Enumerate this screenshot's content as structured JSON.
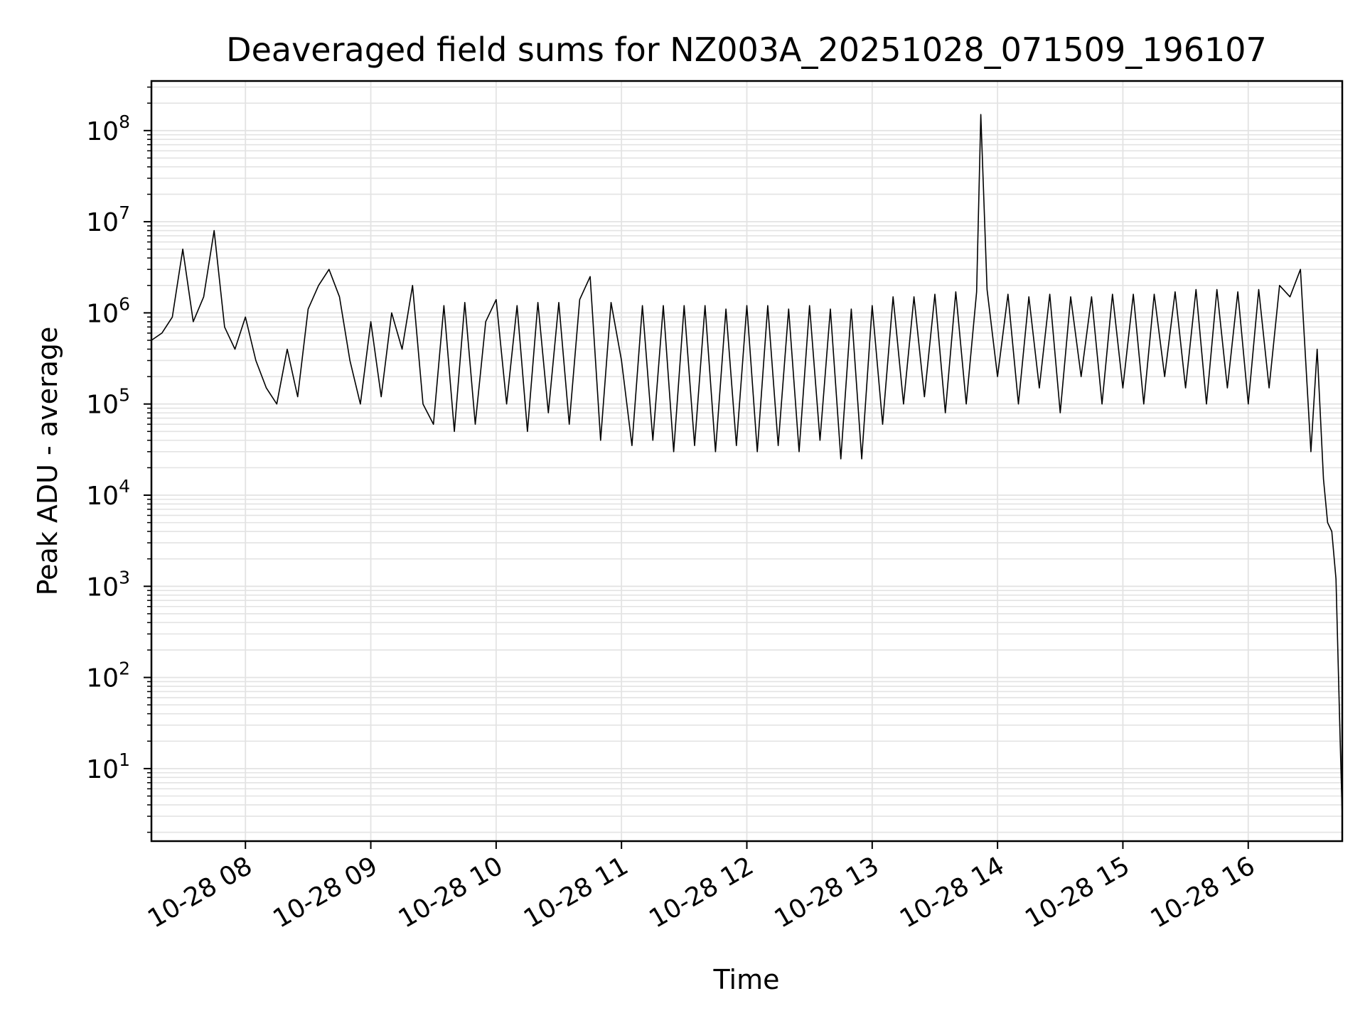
{
  "chart_data": {
    "type": "line",
    "title": "Deaveraged field sums for NZ003A_20251028_071509_196107",
    "xlabel": "Time",
    "ylabel": "Peak ADU - average",
    "yscale": "log",
    "ylim": [
      1.6,
      350000000.0
    ],
    "xlim": [
      "2025-10-28 07:15",
      "2025-10-28 16:45"
    ],
    "grid": true,
    "grid_color": "#e3e3e3",
    "line_color": "#000000",
    "x_ticks": [
      "10-28 08",
      "10-28 09",
      "10-28 10",
      "10-28 11",
      "10-28 12",
      "10-28 13",
      "10-28 14",
      "10-28 15",
      "10-28 16"
    ],
    "x_tick_times": [
      "2025-10-28 08:00",
      "2025-10-28 09:00",
      "2025-10-28 10:00",
      "2025-10-28 11:00",
      "2025-10-28 12:00",
      "2025-10-28 13:00",
      "2025-10-28 14:00",
      "2025-10-28 15:00",
      "2025-10-28 16:00"
    ],
    "y_ticks": [
      {
        "value": 10,
        "base": "10",
        "exp": "1"
      },
      {
        "value": 100,
        "base": "10",
        "exp": "2"
      },
      {
        "value": 1000,
        "base": "10",
        "exp": "3"
      },
      {
        "value": 10000,
        "base": "10",
        "exp": "4"
      },
      {
        "value": 100000,
        "base": "10",
        "exp": "5"
      },
      {
        "value": 1000000,
        "base": "10",
        "exp": "6"
      },
      {
        "value": 10000000,
        "base": "10",
        "exp": "7"
      },
      {
        "value": 100000000,
        "base": "10",
        "exp": "8"
      }
    ],
    "x": [
      "2025-10-28 07:15",
      "2025-10-28 07:20",
      "2025-10-28 07:25",
      "2025-10-28 07:30",
      "2025-10-28 07:35",
      "2025-10-28 07:40",
      "2025-10-28 07:45",
      "2025-10-28 07:50",
      "2025-10-28 07:55",
      "2025-10-28 08:00",
      "2025-10-28 08:05",
      "2025-10-28 08:10",
      "2025-10-28 08:15",
      "2025-10-28 08:20",
      "2025-10-28 08:25",
      "2025-10-28 08:30",
      "2025-10-28 08:35",
      "2025-10-28 08:40",
      "2025-10-28 08:45",
      "2025-10-28 08:50",
      "2025-10-28 08:55",
      "2025-10-28 09:00",
      "2025-10-28 09:05",
      "2025-10-28 09:10",
      "2025-10-28 09:15",
      "2025-10-28 09:20",
      "2025-10-28 09:25",
      "2025-10-28 09:30",
      "2025-10-28 09:35",
      "2025-10-28 09:40",
      "2025-10-28 09:45",
      "2025-10-28 09:50",
      "2025-10-28 09:55",
      "2025-10-28 10:00",
      "2025-10-28 10:05",
      "2025-10-28 10:10",
      "2025-10-28 10:15",
      "2025-10-28 10:20",
      "2025-10-28 10:25",
      "2025-10-28 10:30",
      "2025-10-28 10:35",
      "2025-10-28 10:40",
      "2025-10-28 10:45",
      "2025-10-28 10:50",
      "2025-10-28 10:55",
      "2025-10-28 11:00",
      "2025-10-28 11:05",
      "2025-10-28 11:10",
      "2025-10-28 11:15",
      "2025-10-28 11:20",
      "2025-10-28 11:25",
      "2025-10-28 11:30",
      "2025-10-28 11:35",
      "2025-10-28 11:40",
      "2025-10-28 11:45",
      "2025-10-28 11:50",
      "2025-10-28 11:55",
      "2025-10-28 12:00",
      "2025-10-28 12:05",
      "2025-10-28 12:10",
      "2025-10-28 12:15",
      "2025-10-28 12:20",
      "2025-10-28 12:25",
      "2025-10-28 12:30",
      "2025-10-28 12:35",
      "2025-10-28 12:40",
      "2025-10-28 12:45",
      "2025-10-28 12:50",
      "2025-10-28 12:55",
      "2025-10-28 13:00",
      "2025-10-28 13:05",
      "2025-10-28 13:10",
      "2025-10-28 13:15",
      "2025-10-28 13:20",
      "2025-10-28 13:25",
      "2025-10-28 13:30",
      "2025-10-28 13:35",
      "2025-10-28 13:40",
      "2025-10-28 13:45",
      "2025-10-28 13:50",
      "2025-10-28 13:52",
      "2025-10-28 13:55",
      "2025-10-28 14:00",
      "2025-10-28 14:05",
      "2025-10-28 14:10",
      "2025-10-28 14:15",
      "2025-10-28 14:20",
      "2025-10-28 14:25",
      "2025-10-28 14:30",
      "2025-10-28 14:35",
      "2025-10-28 14:40",
      "2025-10-28 14:45",
      "2025-10-28 14:50",
      "2025-10-28 14:55",
      "2025-10-28 15:00",
      "2025-10-28 15:05",
      "2025-10-28 15:10",
      "2025-10-28 15:15",
      "2025-10-28 15:20",
      "2025-10-28 15:25",
      "2025-10-28 15:30",
      "2025-10-28 15:35",
      "2025-10-28 15:40",
      "2025-10-28 15:45",
      "2025-10-28 15:50",
      "2025-10-28 15:55",
      "2025-10-28 16:00",
      "2025-10-28 16:05",
      "2025-10-28 16:10",
      "2025-10-28 16:15",
      "2025-10-28 16:20",
      "2025-10-28 16:25",
      "2025-10-28 16:30",
      "2025-10-28 16:33",
      "2025-10-28 16:36",
      "2025-10-28 16:38",
      "2025-10-28 16:40",
      "2025-10-28 16:42",
      "2025-10-28 16:44",
      "2025-10-28 16:45"
    ],
    "series": [
      {
        "values": [
          500000,
          600000,
          900000,
          5000000,
          800000,
          1500000,
          8000000,
          700000,
          400000,
          900000,
          300000,
          150000,
          100000,
          400000,
          120000,
          1100000,
          2000000,
          3000000,
          1500000,
          300000,
          100000,
          800000,
          120000,
          1000000,
          400000,
          2000000,
          100000,
          60000,
          1200000,
          50000,
          1300000,
          60000,
          800000,
          1400000,
          100000,
          1200000,
          50000,
          1300000,
          80000,
          1300000,
          60000,
          1400000,
          2500000,
          40000,
          1300000,
          300000,
          35000,
          1200000,
          40000,
          1200000,
          30000,
          1200000,
          35000,
          1200000,
          30000,
          1100000,
          35000,
          1200000,
          30000,
          1200000,
          35000,
          1100000,
          30000,
          1200000,
          40000,
          1100000,
          25000,
          1100000,
          25000,
          1200000,
          60000,
          1500000,
          100000,
          1500000,
          120000,
          1600000,
          80000,
          1700000,
          100000,
          1700000,
          150000000,
          1800000,
          200000,
          1600000,
          100000,
          1500000,
          150000,
          1600000,
          80000,
          1500000,
          200000,
          1500000,
          100000,
          1600000,
          150000,
          1600000,
          100000,
          1600000,
          200000,
          1700000,
          150000,
          1800000,
          100000,
          1800000,
          150000,
          1700000,
          100000,
          1800000,
          150000,
          2000000,
          1500000,
          3000000,
          30000,
          400000,
          15000,
          5000,
          4000,
          1200,
          20,
          3
        ]
      }
    ]
  }
}
